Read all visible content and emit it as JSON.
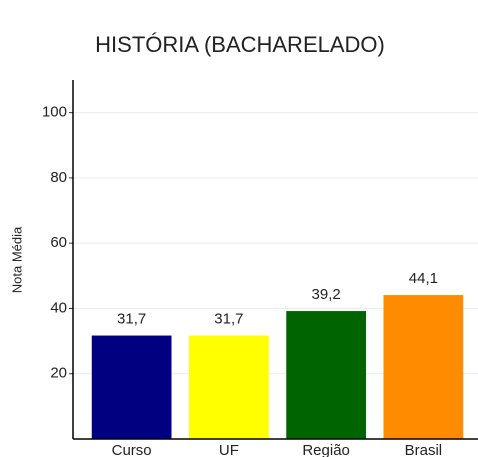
{
  "chart_data": {
    "type": "bar",
    "title": "HISTÓRIA (BACHARELADO)",
    "y_label": "Nota Média",
    "categories": [
      "Curso",
      "UF",
      "Região",
      "Brasil"
    ],
    "values": [
      31.7,
      31.7,
      39.2,
      44.1
    ],
    "value_labels": [
      "31,7",
      "31,7",
      "39,2",
      "44,1"
    ],
    "colors": [
      "#000080",
      "#ffff00",
      "#006400",
      "#ff8c00"
    ],
    "ylim": [
      0,
      110
    ],
    "yticks": [
      20,
      40,
      60,
      80,
      100
    ],
    "grid": true
  }
}
